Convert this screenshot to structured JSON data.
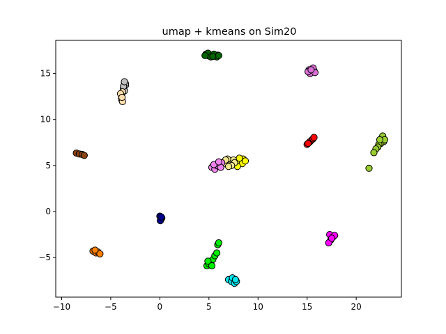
{
  "chart_data": {
    "type": "scatter",
    "title": "umap + kmeans on Sim20",
    "xlabel": "",
    "ylabel": "",
    "xlim": [
      -10.6,
      24.6
    ],
    "ylim": [
      -9.3,
      18.6
    ],
    "xticks": [
      -10,
      -5,
      0,
      5,
      10,
      15,
      20
    ],
    "xtick_labels": [
      "−10",
      "−5",
      "0",
      "5",
      "10",
      "15",
      "20"
    ],
    "yticks": [
      -5,
      0,
      5,
      10,
      15
    ],
    "ytick_labels": [
      "−5",
      "0",
      "5",
      "10",
      "15"
    ],
    "grid": false,
    "legend": "none",
    "marker_edge_color": "#000000",
    "clusters": [
      {
        "color": "#006400",
        "points": [
          [
            4.7,
            17.1
          ],
          [
            5.0,
            16.9
          ],
          [
            5.3,
            17.0
          ],
          [
            5.6,
            16.9
          ],
          [
            5.9,
            17.0
          ],
          [
            4.9,
            17.2
          ],
          [
            5.5,
            17.1
          ],
          [
            5.2,
            16.8
          ],
          [
            5.8,
            16.8
          ],
          [
            4.6,
            16.95
          ],
          [
            5.4,
            16.85
          ],
          [
            6.0,
            16.95
          ]
        ]
      },
      {
        "color": "#c0c0c0",
        "points": [
          [
            -3.6,
            14.0
          ],
          [
            -3.5,
            13.7
          ],
          [
            -3.7,
            13.4
          ],
          [
            -3.6,
            13.1
          ],
          [
            -3.5,
            13.9
          ],
          [
            -3.7,
            13.6
          ],
          [
            -3.6,
            14.1
          ]
        ]
      },
      {
        "color": "#ffdead",
        "points": [
          [
            -3.8,
            13.0
          ],
          [
            -3.9,
            12.6
          ],
          [
            -3.9,
            12.2
          ],
          [
            -3.8,
            11.95
          ],
          [
            -4.0,
            12.8
          ],
          [
            -3.85,
            12.4
          ]
        ]
      },
      {
        "color": "#da70d6",
        "points": [
          [
            15.2,
            15.4
          ],
          [
            15.5,
            15.2
          ],
          [
            15.7,
            15.3
          ],
          [
            15.3,
            15.0
          ],
          [
            15.6,
            15.6
          ],
          [
            15.1,
            15.2
          ],
          [
            15.8,
            15.1
          ],
          [
            15.4,
            15.4
          ]
        ]
      },
      {
        "color": "#ff0000",
        "points": [
          [
            15.0,
            7.3
          ],
          [
            15.2,
            7.5
          ],
          [
            15.3,
            7.6
          ],
          [
            15.5,
            7.8
          ],
          [
            15.6,
            7.9
          ],
          [
            15.7,
            8.05
          ],
          [
            15.1,
            7.4
          ]
        ]
      },
      {
        "color": "#9acd32",
        "points": [
          [
            22.6,
            8.0
          ],
          [
            22.8,
            7.6
          ],
          [
            22.5,
            7.4
          ],
          [
            22.3,
            7.3
          ],
          [
            22.2,
            7.0
          ],
          [
            22.0,
            6.8
          ],
          [
            21.8,
            6.4
          ],
          [
            22.7,
            8.2
          ],
          [
            22.9,
            7.8
          ],
          [
            22.4,
            7.8
          ],
          [
            21.3,
            4.7
          ]
        ]
      },
      {
        "color": "#ffff00",
        "points": [
          [
            7.8,
            5.5
          ],
          [
            8.2,
            5.3
          ],
          [
            8.5,
            5.7
          ],
          [
            8.4,
            5.2
          ],
          [
            7.9,
            4.9
          ],
          [
            8.7,
            5.5
          ],
          [
            8.1,
            5.8
          ]
        ]
      },
      {
        "color": "#f0e68c",
        "points": [
          [
            6.6,
            5.2
          ],
          [
            7.1,
            5.5
          ],
          [
            7.5,
            5.6
          ],
          [
            7.2,
            5.1
          ],
          [
            6.9,
            5.7
          ],
          [
            7.6,
            5.3
          ],
          [
            7.3,
            5.0
          ],
          [
            6.7,
            5.6
          ],
          [
            7.0,
            4.9
          ]
        ]
      },
      {
        "color": "#ee82ee",
        "points": [
          [
            5.3,
            4.8
          ],
          [
            5.6,
            4.6
          ],
          [
            5.8,
            5.0
          ],
          [
            6.0,
            4.9
          ],
          [
            6.3,
            5.3
          ],
          [
            5.5,
            5.1
          ],
          [
            6.2,
            4.8
          ],
          [
            6.0,
            5.4
          ]
        ]
      },
      {
        "color": "#8b4513",
        "points": [
          [
            -8.5,
            6.35
          ],
          [
            -8.2,
            6.25
          ],
          [
            -7.9,
            6.2
          ],
          [
            -7.7,
            6.1
          ]
        ]
      },
      {
        "color": "#00008b",
        "points": [
          [
            0.0,
            -0.5
          ],
          [
            0.2,
            -0.7
          ],
          [
            0.1,
            -0.9
          ],
          [
            0.05,
            -1.0
          ],
          [
            0.15,
            -0.6
          ]
        ]
      },
      {
        "color": "#ff00ff",
        "points": [
          [
            17.3,
            -2.5
          ],
          [
            17.6,
            -2.8
          ],
          [
            17.4,
            -3.1
          ],
          [
            17.2,
            -3.4
          ],
          [
            17.8,
            -2.6
          ],
          [
            17.5,
            -2.9
          ]
        ]
      },
      {
        "color": "#ff7f00",
        "points": [
          [
            -6.8,
            -4.3
          ],
          [
            -6.5,
            -4.5
          ],
          [
            -6.3,
            -4.4
          ],
          [
            -6.1,
            -4.6
          ],
          [
            -6.6,
            -4.2
          ]
        ]
      },
      {
        "color": "#00ee00",
        "points": [
          [
            4.8,
            -5.9
          ],
          [
            5.0,
            -5.7
          ],
          [
            5.2,
            -5.5
          ],
          [
            5.4,
            -5.2
          ],
          [
            5.6,
            -4.8
          ],
          [
            5.8,
            -4.5
          ],
          [
            5.9,
            -3.6
          ],
          [
            6.0,
            -3.4
          ],
          [
            4.9,
            -5.4
          ],
          [
            5.3,
            -5.9
          ]
        ]
      },
      {
        "color": "#00e5ee",
        "points": [
          [
            7.0,
            -7.4
          ],
          [
            7.3,
            -7.6
          ],
          [
            7.6,
            -7.8
          ],
          [
            7.8,
            -7.6
          ],
          [
            7.4,
            -7.2
          ],
          [
            7.7,
            -7.4
          ]
        ]
      }
    ]
  }
}
